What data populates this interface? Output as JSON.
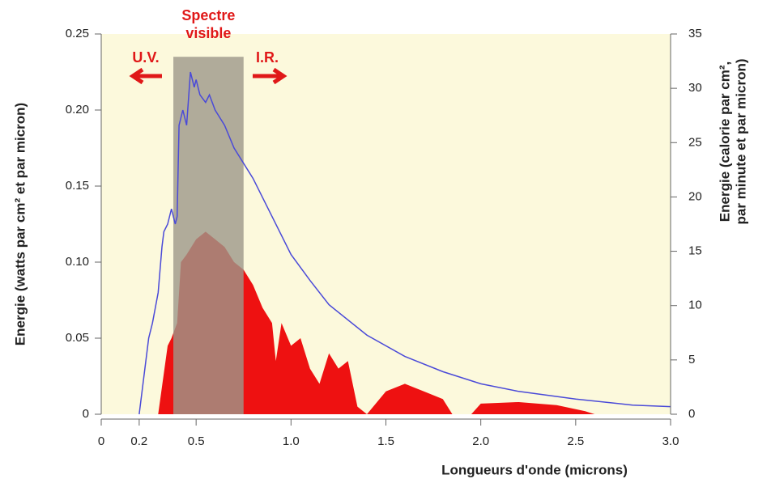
{
  "chart_data": {
    "type": "line",
    "xlabel": "Longueurs d'onde (microns)",
    "ylabel": "Energie (watts par cm² et par micron)",
    "y2label": [
      "Energie (calorie par cm²,",
      "par minute et par micron)"
    ],
    "xlim": [
      0,
      3
    ],
    "xticks": [
      0,
      0.2,
      0.5,
      {
        "value": 1,
        "label": "1.0"
      },
      1.5,
      {
        "value": 2,
        "label": "2.0"
      },
      2.5,
      {
        "value": 3,
        "label": "3.0"
      }
    ],
    "ylim": [
      0,
      0.25
    ],
    "yticks": [
      0,
      0.05,
      {
        "value": 0.1,
        "label": "0.10"
      },
      0.15,
      {
        "value": 0.2,
        "label": "0.20"
      },
      0.25
    ],
    "y2lim": [
      0,
      35
    ],
    "y2ticks": [
      0,
      5,
      10,
      15,
      20,
      25,
      30,
      35
    ],
    "highlight": {
      "x": [
        0.38,
        0.75
      ],
      "top": 0.235,
      "label": [
        "Spectre",
        "visible"
      ],
      "color": "#9c978a"
    },
    "annotations": [
      "U.V.",
      "I.R."
    ],
    "series": [
      {
        "type": "line",
        "color": "#4a4ad8",
        "x": [
          0.2,
          0.25,
          0.27,
          0.3,
          0.32,
          0.33,
          0.35,
          0.37,
          0.39,
          0.4,
          0.41,
          0.43,
          0.45,
          0.47,
          0.49,
          0.5,
          0.52,
          0.55,
          0.57,
          0.6,
          0.65,
          0.7,
          0.8,
          0.9,
          1.0,
          1.1,
          1.2,
          1.4,
          1.6,
          1.8,
          2.0,
          2.2,
          2.5,
          2.8,
          3.0
        ],
        "values": [
          0,
          0.05,
          0.06,
          0.08,
          0.11,
          0.12,
          0.125,
          0.135,
          0.125,
          0.13,
          0.19,
          0.2,
          0.19,
          0.225,
          0.215,
          0.22,
          0.21,
          0.205,
          0.21,
          0.2,
          0.19,
          0.175,
          0.155,
          0.13,
          0.105,
          0.088,
          0.072,
          0.052,
          0.038,
          0.028,
          0.02,
          0.015,
          0.01,
          0.006,
          0.005
        ]
      },
      {
        "type": "area",
        "color": "#ee1111",
        "x": [
          0.3,
          0.35,
          0.37,
          0.4,
          0.42,
          0.45,
          0.5,
          0.55,
          0.6,
          0.65,
          0.7,
          0.75,
          0.8,
          0.85,
          0.9,
          0.92,
          0.95,
          1.0,
          1.05,
          1.1,
          1.15,
          1.2,
          1.25,
          1.3,
          1.35,
          1.4,
          1.5,
          1.6,
          1.7,
          1.8,
          1.85,
          1.95,
          2.0,
          2.2,
          2.4,
          2.55,
          2.6
        ],
        "values": [
          0,
          0.045,
          0.05,
          0.06,
          0.1,
          0.105,
          0.115,
          0.12,
          0.115,
          0.11,
          0.1,
          0.095,
          0.085,
          0.07,
          0.06,
          0.035,
          0.06,
          0.045,
          0.05,
          0.03,
          0.02,
          0.04,
          0.03,
          0.035,
          0.005,
          0,
          0.015,
          0.02,
          0.015,
          0.01,
          0,
          0,
          0.007,
          0.008,
          0.006,
          0.002,
          0
        ]
      }
    ]
  }
}
